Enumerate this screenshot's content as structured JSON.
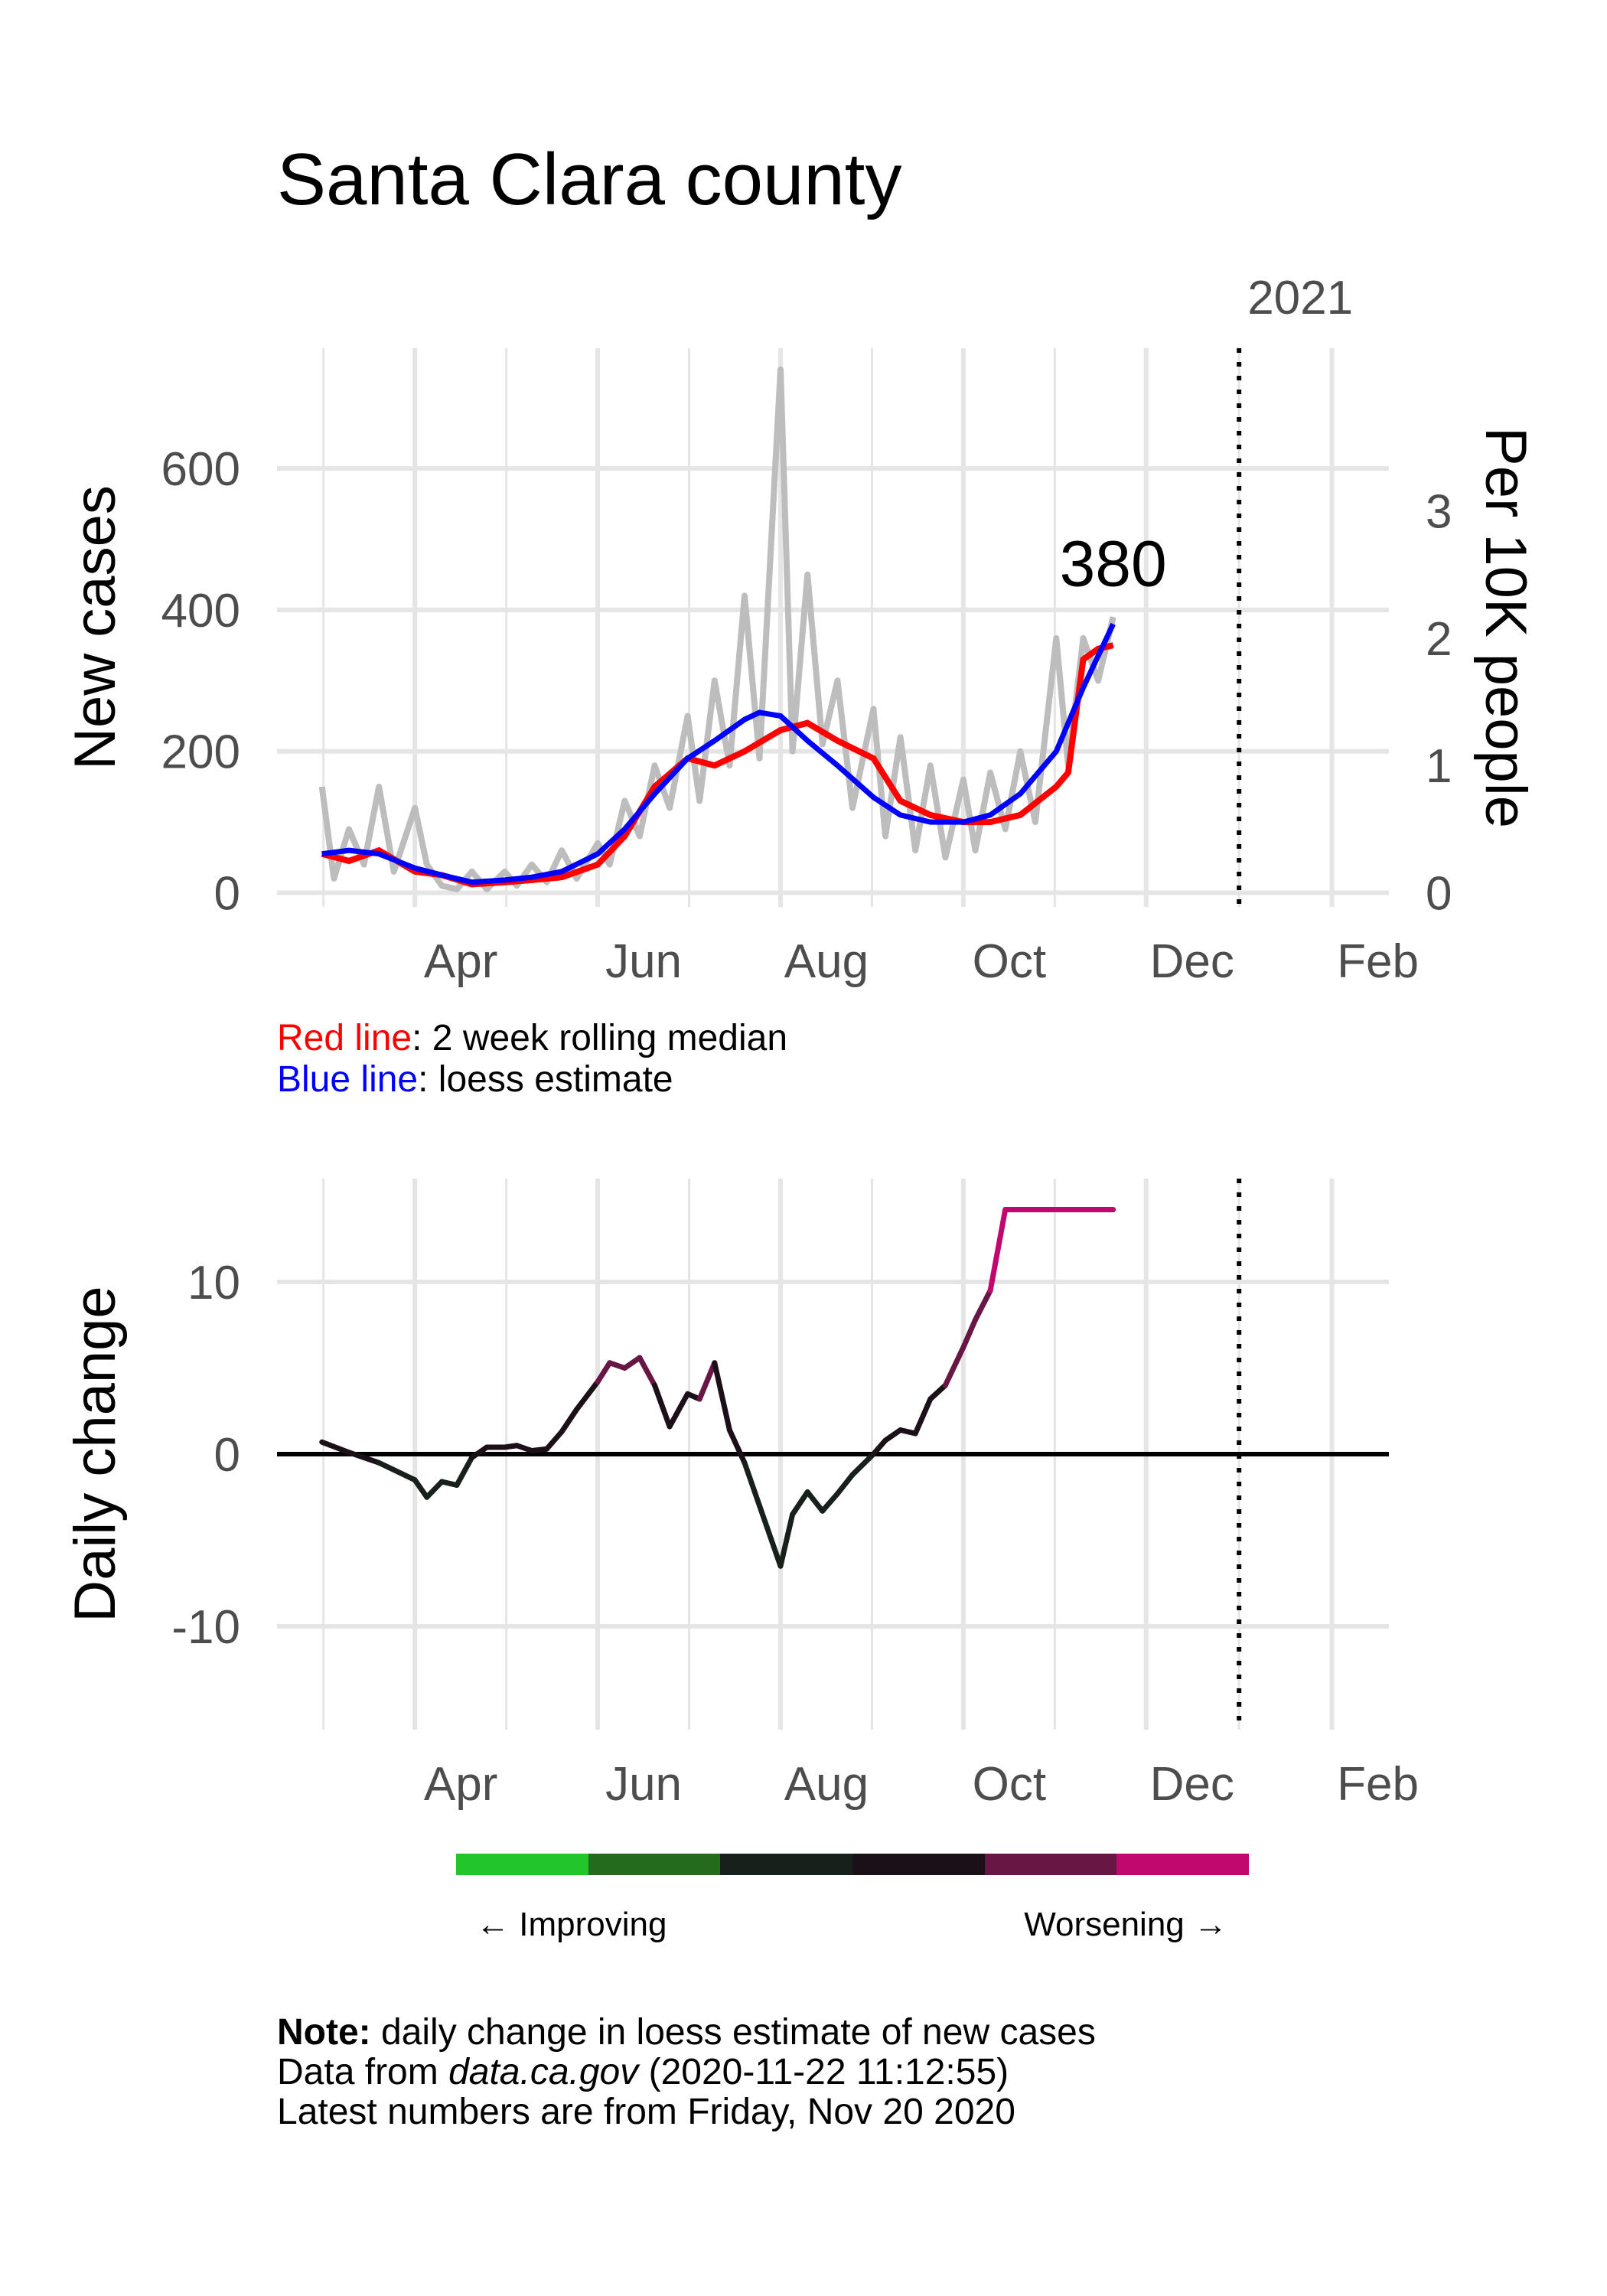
{
  "title": "Santa Clara county",
  "colors": {
    "red_line": "#ff0000",
    "blue_line": "#0000ff",
    "raw_line": "#bdbdbd",
    "grid": "#e5e5e5",
    "colorbar": [
      "#22c52a",
      "#246b1e",
      "#17201b",
      "#1b1018",
      "#681644",
      "#c0086f"
    ]
  },
  "legend": {
    "red_label": "Red line",
    "red_desc": ": 2 week rolling median",
    "blue_label": "Blue line",
    "blue_desc": ": loess estimate"
  },
  "colorbar_labels": {
    "left": "← Improving",
    "right": "Worsening →"
  },
  "notes": {
    "note_label": "Note:",
    "note_text": " daily change in loess estimate of new cases",
    "data_prefix": "Data from ",
    "data_source": "data.ca.gov",
    "data_time": " (2020-11-22 11:12:55)",
    "latest": "Latest numbers are from Friday, Nov 20 2020"
  },
  "chart_data": [
    {
      "type": "line",
      "xlabel": "",
      "ylabel": "New cases",
      "ylabel_right": "Per 10K people",
      "x_ticks": [
        "Apr",
        "Jun",
        "Aug",
        "Oct",
        "Dec",
        "Feb"
      ],
      "x_tick_dates": [
        "2020-04-01",
        "2020-06-01",
        "2020-08-01",
        "2020-10-01",
        "2020-12-01",
        "2021-02-01"
      ],
      "xlim": [
        "2020-02-15",
        "2021-02-20"
      ],
      "ylim": [
        -20,
        770
      ],
      "y_ticks": [
        0,
        200,
        400,
        600
      ],
      "y2_ticks": [
        0,
        1,
        2,
        3
      ],
      "vline_date": "2021-01-01",
      "vline_label": "2021",
      "annotation": {
        "text": "380",
        "date": "2020-11-20",
        "value": 380
      },
      "series": [
        {
          "values_dates": [
            "2020-03-01",
            "2020-03-05",
            "2020-03-10",
            "2020-03-15",
            "2020-03-20",
            "2020-03-25",
            "2020-04-01",
            "2020-04-05",
            "2020-04-10",
            "2020-04-15",
            "2020-04-20",
            "2020-04-25",
            "2020-05-01",
            "2020-05-05",
            "2020-05-10",
            "2020-05-15",
            "2020-05-20",
            "2020-05-25",
            "2020-06-01",
            "2020-06-05",
            "2020-06-10",
            "2020-06-15",
            "2020-06-20",
            "2020-06-25",
            "2020-07-01",
            "2020-07-05",
            "2020-07-10",
            "2020-07-15",
            "2020-07-20",
            "2020-07-25",
            "2020-08-01",
            "2020-08-05",
            "2020-08-10",
            "2020-08-15",
            "2020-08-20",
            "2020-08-25",
            "2020-09-01",
            "2020-09-05",
            "2020-09-10",
            "2020-09-15",
            "2020-09-20",
            "2020-09-25",
            "2020-10-01",
            "2020-10-05",
            "2020-10-10",
            "2020-10-15",
            "2020-10-20",
            "2020-10-25",
            "2020-11-01",
            "2020-11-05",
            "2020-11-10",
            "2020-11-15",
            "2020-11-20"
          ],
          "values": [
            150,
            20,
            90,
            40,
            150,
            30,
            120,
            40,
            10,
            5,
            30,
            5,
            30,
            10,
            40,
            15,
            60,
            20,
            70,
            40,
            130,
            80,
            180,
            120,
            250,
            130,
            300,
            180,
            420,
            190,
            740,
            200,
            450,
            210,
            300,
            120,
            260,
            80,
            220,
            60,
            180,
            50,
            160,
            60,
            170,
            90,
            200,
            100,
            360,
            180,
            360,
            300,
            390
          ]
        },
        {
          "name": "Red line",
          "values_dates": [
            "2020-03-01",
            "2020-03-10",
            "2020-03-20",
            "2020-04-01",
            "2020-04-10",
            "2020-04-20",
            "2020-05-01",
            "2020-05-10",
            "2020-05-20",
            "2020-06-01",
            "2020-06-10",
            "2020-06-20",
            "2020-07-01",
            "2020-07-10",
            "2020-07-20",
            "2020-08-01",
            "2020-08-10",
            "2020-08-20",
            "2020-09-01",
            "2020-09-10",
            "2020-09-20",
            "2020-10-01",
            "2020-10-10",
            "2020-10-20",
            "2020-11-01",
            "2020-11-05",
            "2020-11-10",
            "2020-11-15",
            "2020-11-20"
          ],
          "values": [
            55,
            45,
            60,
            30,
            25,
            12,
            15,
            18,
            22,
            40,
            80,
            150,
            190,
            180,
            200,
            230,
            240,
            215,
            190,
            130,
            110,
            100,
            100,
            110,
            150,
            170,
            330,
            345,
            350
          ]
        },
        {
          "name": "Blue line",
          "values_dates": [
            "2020-03-01",
            "2020-03-10",
            "2020-03-20",
            "2020-04-01",
            "2020-04-10",
            "2020-04-20",
            "2020-05-01",
            "2020-05-10",
            "2020-05-20",
            "2020-06-01",
            "2020-06-10",
            "2020-06-20",
            "2020-07-01",
            "2020-07-10",
            "2020-07-20",
            "2020-07-25",
            "2020-08-01",
            "2020-08-10",
            "2020-08-20",
            "2020-09-01",
            "2020-09-10",
            "2020-09-20",
            "2020-10-01",
            "2020-10-10",
            "2020-10-20",
            "2020-11-01",
            "2020-11-10",
            "2020-11-20"
          ],
          "values": [
            55,
            60,
            55,
            35,
            25,
            15,
            18,
            22,
            30,
            55,
            90,
            140,
            190,
            215,
            245,
            255,
            250,
            215,
            180,
            135,
            110,
            100,
            100,
            110,
            140,
            200,
            290,
            380
          ]
        }
      ]
    },
    {
      "type": "line",
      "xlabel": "",
      "ylabel": "Daily change",
      "x_ticks": [
        "Apr",
        "Jun",
        "Aug",
        "Oct",
        "Dec",
        "Feb"
      ],
      "x_tick_dates": [
        "2020-04-01",
        "2020-06-01",
        "2020-08-01",
        "2020-10-01",
        "2020-12-01",
        "2021-02-01"
      ],
      "xlim": [
        "2020-02-15",
        "2021-02-20"
      ],
      "ylim": [
        -16,
        16
      ],
      "y_ticks": [
        -10,
        0,
        10
      ],
      "vline_date": "2021-01-01",
      "series": [
        {
          "values_dates": [
            "2020-03-01",
            "2020-03-10",
            "2020-03-20",
            "2020-04-01",
            "2020-04-05",
            "2020-04-10",
            "2020-04-15",
            "2020-04-20",
            "2020-04-25",
            "2020-05-01",
            "2020-05-05",
            "2020-05-10",
            "2020-05-15",
            "2020-05-20",
            "2020-05-25",
            "2020-06-01",
            "2020-06-05",
            "2020-06-10",
            "2020-06-15",
            "2020-06-20",
            "2020-06-25",
            "2020-07-01",
            "2020-07-05",
            "2020-07-10",
            "2020-07-15",
            "2020-07-20",
            "2020-07-25",
            "2020-08-01",
            "2020-08-05",
            "2020-08-10",
            "2020-08-15",
            "2020-08-20",
            "2020-08-25",
            "2020-09-01",
            "2020-09-05",
            "2020-09-10",
            "2020-09-15",
            "2020-09-20",
            "2020-09-25",
            "2020-10-01",
            "2020-10-05",
            "2020-10-10",
            "2020-10-15",
            "2020-10-20",
            "2020-10-25",
            "2020-11-01",
            "2020-11-10",
            "2020-11-20"
          ],
          "values": [
            0.7,
            0.1,
            -0.5,
            -1.5,
            -2.5,
            -1.6,
            -1.8,
            -0.2,
            0.4,
            0.4,
            0.5,
            0.2,
            0.3,
            1.3,
            2.6,
            4.2,
            5.3,
            5.0,
            5.6,
            4.0,
            1.6,
            3.5,
            3.2,
            5.3,
            1.4,
            -0.5,
            -3.0,
            -6.5,
            -3.5,
            -2.2,
            -3.3,
            -2.3,
            -1.2,
            0.0,
            0.8,
            1.4,
            1.2,
            3.2,
            4.0,
            6.2,
            7.8,
            9.5,
            14.2,
            14.2,
            14.2,
            14.2,
            14.2,
            14.2
          ]
        }
      ]
    }
  ]
}
